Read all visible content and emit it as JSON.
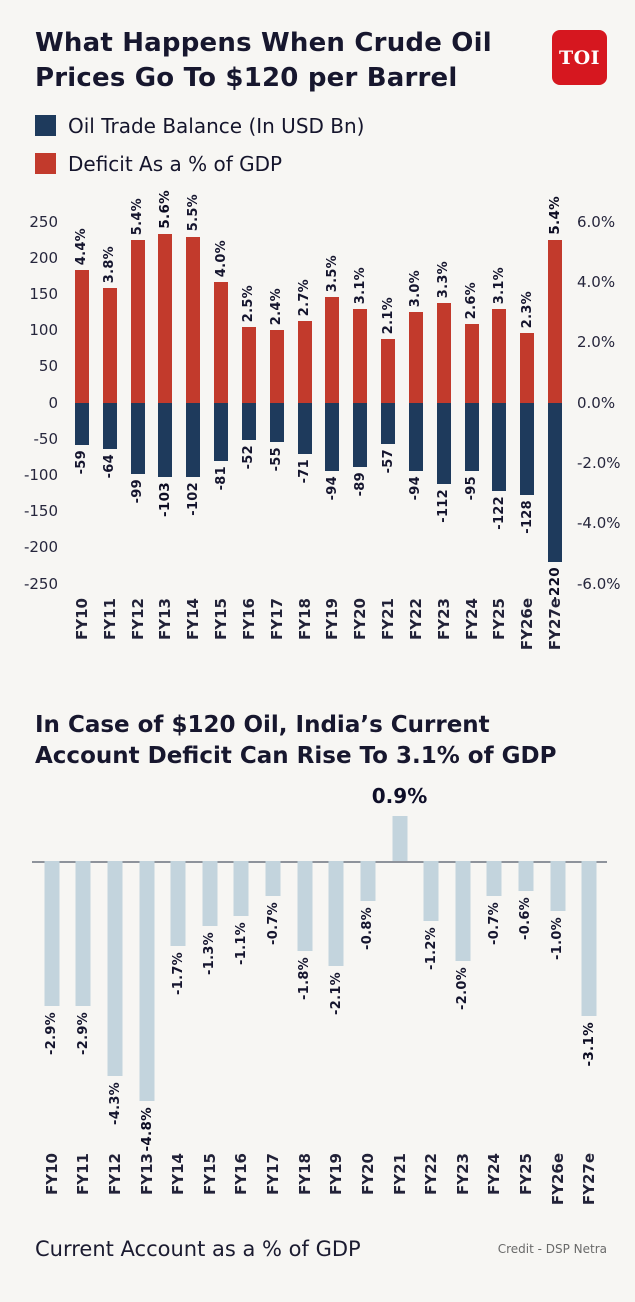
{
  "page": {
    "bg": "#f7f6f3"
  },
  "logo": {
    "text": "TOI",
    "bg": "#d6171f"
  },
  "header": {
    "title": "What Happens When Crude Oil Prices Go To $120 per Barrel",
    "title_line1": "What Happens When Crude Oil",
    "title_line2": "Prices Go To $120 per Barrel"
  },
  "legend": {
    "items": [
      {
        "label": "Oil Trade Balance (In USD Bn)",
        "color": "#1e3a5c"
      },
      {
        "label": "Deficit As a % of GDP",
        "color": "#c23a2c"
      }
    ]
  },
  "section2": {
    "title": "In Case of $120 Oil, India’s Current Account Deficit Can Rise To 3.1% of GDP",
    "title_line1": "In Case of $120 Oil, India’s Current",
    "title_line2": "Account Deficit Can Rise To 3.1% of GDP"
  },
  "footer": {
    "caption": "Current Account as a % of GDP",
    "credit": "Credit - DSP Netra"
  },
  "chart_data": [
    {
      "type": "bar",
      "title": "What Happens When Crude Oil Prices Go To $120 per Barrel",
      "legend_position": "top",
      "grid": false,
      "categories": [
        "FY10",
        "FY11",
        "FY12",
        "FY13",
        "FY14",
        "FY15",
        "FY16",
        "FY17",
        "FY18",
        "FY19",
        "FY20",
        "FY21",
        "FY22",
        "FY23",
        "FY24",
        "FY25",
        "FY26e",
        "FY27e"
      ],
      "series": [
        {
          "name": "Oil Trade Balance (In USD Bn)",
          "axis": "left",
          "color": "#1e3a5c",
          "values": [
            -59,
            -64,
            -99,
            -103,
            -102,
            -81,
            -52,
            -55,
            -71,
            -94,
            -89,
            -57,
            -94,
            -112,
            -95,
            -122,
            -128,
            -220
          ],
          "labels": [
            "-59",
            "-64",
            "-99",
            "-103",
            "-102",
            "-81",
            "-52",
            "-55",
            "-71",
            "-94",
            "-89",
            "-57",
            "-94",
            "-112",
            "-95",
            "-122",
            "-128",
            "-220"
          ]
        },
        {
          "name": "Deficit As a % of GDP",
          "axis": "right",
          "color": "#c23a2c",
          "values": [
            4.4,
            3.8,
            5.4,
            5.6,
            5.5,
            4.0,
            2.5,
            2.4,
            2.7,
            3.5,
            3.1,
            2.1,
            3.0,
            3.3,
            2.6,
            3.1,
            2.3,
            5.4
          ],
          "labels": [
            "4.4%",
            "3.8%",
            "5.4%",
            "5.6%",
            "5.5%",
            "4.0%",
            "2.5%",
            "2.4%",
            "2.7%",
            "3.5%",
            "3.1%",
            "2.1%",
            "3.0%",
            "3.3%",
            "2.6%",
            "3.1%",
            "2.3%",
            "5.4%"
          ]
        }
      ],
      "bold_categories": [
        "FY13",
        "FY27e"
      ],
      "left_axis": {
        "min": -250,
        "max": 250,
        "ticks": [
          "250",
          "200",
          "150",
          "100",
          "50",
          "0",
          "-50",
          "-100",
          "-150",
          "-200",
          "-250"
        ]
      },
      "right_axis": {
        "min": -6,
        "max": 6,
        "ticks": [
          "6.0%",
          "4.0%",
          "2.0%",
          "0.0%",
          "-2.0%",
          "-4.0%",
          "-6.0%"
        ]
      }
    },
    {
      "type": "bar",
      "title": "In Case of $120 Oil, India’s Current Account Deficit Can Rise To 3.1% of GDP",
      "ylabel": "Current Account as a % of GDP",
      "ylim": [
        -5,
        1
      ],
      "grid": false,
      "color": "#c3d4dd",
      "categories": [
        "FY10",
        "FY11",
        "FY12",
        "FY13",
        "FY14",
        "FY15",
        "FY16",
        "FY17",
        "FY18",
        "FY19",
        "FY20",
        "FY21",
        "FY22",
        "FY23",
        "FY24",
        "FY25",
        "FY26e",
        "FY27e"
      ],
      "values": [
        -2.9,
        -2.9,
        -4.3,
        -4.8,
        -1.7,
        -1.3,
        -1.1,
        -0.7,
        -1.8,
        -2.1,
        -0.8,
        0.9,
        -1.2,
        -2.0,
        -0.7,
        -0.6,
        -1.0,
        -3.1
      ],
      "labels": [
        "-2.9%",
        "-2.9%",
        "-4.3%",
        "-4.8%",
        "-1.7%",
        "-1.3%",
        "-1.1%",
        "-0.7%",
        "-1.8%",
        "-2.1%",
        "-0.8%",
        "0.9%",
        "-1.2%",
        "-2.0%",
        "-0.7%",
        "-0.6%",
        "-1.0%",
        "-3.1%"
      ],
      "bold_categories": [
        "FY13",
        "FY27e"
      ]
    }
  ]
}
